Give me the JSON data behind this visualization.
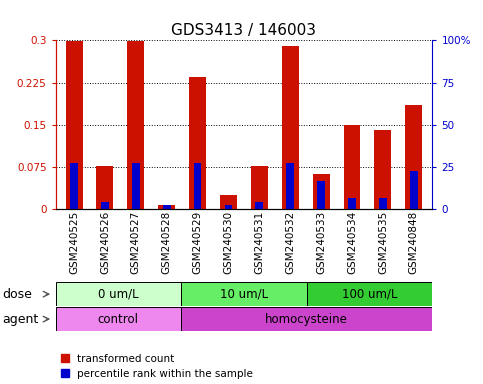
{
  "title": "GDS3413 / 146003",
  "samples": [
    "GSM240525",
    "GSM240526",
    "GSM240527",
    "GSM240528",
    "GSM240529",
    "GSM240530",
    "GSM240531",
    "GSM240532",
    "GSM240533",
    "GSM240534",
    "GSM240535",
    "GSM240848"
  ],
  "red_values": [
    0.298,
    0.077,
    0.298,
    0.007,
    0.235,
    0.025,
    0.077,
    0.29,
    0.063,
    0.15,
    0.14,
    0.185
  ],
  "blue_values": [
    0.083,
    0.013,
    0.083,
    0.007,
    0.083,
    0.007,
    0.013,
    0.083,
    0.05,
    0.02,
    0.02,
    0.068
  ],
  "dose_groups": [
    {
      "label": "0 um/L",
      "start": 0,
      "end": 4,
      "color": "#ccffcc"
    },
    {
      "label": "10 um/L",
      "start": 4,
      "end": 8,
      "color": "#66ee66"
    },
    {
      "label": "100 um/L",
      "start": 8,
      "end": 12,
      "color": "#33cc33"
    }
  ],
  "agent_groups": [
    {
      "label": "control",
      "start": 0,
      "end": 4,
      "color": "#ee88ee"
    },
    {
      "label": "homocysteine",
      "start": 4,
      "end": 12,
      "color": "#cc44cc"
    }
  ],
  "ylim": [
    0,
    0.3
  ],
  "yticks_left": [
    0,
    0.075,
    0.15,
    0.225,
    0.3
  ],
  "ytick_labels_left": [
    "0",
    "0.075",
    "0.15",
    "0.225",
    "0.3"
  ],
  "yticks_right": [
    0,
    25,
    50,
    75,
    100
  ],
  "ytick_labels_right": [
    "0",
    "25",
    "50",
    "75",
    "100%"
  ],
  "right_ylim": [
    0,
    100
  ],
  "red_color": "#cc1100",
  "blue_color": "#0000cc",
  "bar_width": 0.55,
  "blue_bar_width": 0.25,
  "background_color": "#ffffff",
  "xtick_bg": "#cccccc",
  "title_fontsize": 11,
  "tick_fontsize": 7.5,
  "label_fontsize": 9,
  "annot_fontsize": 8.5
}
